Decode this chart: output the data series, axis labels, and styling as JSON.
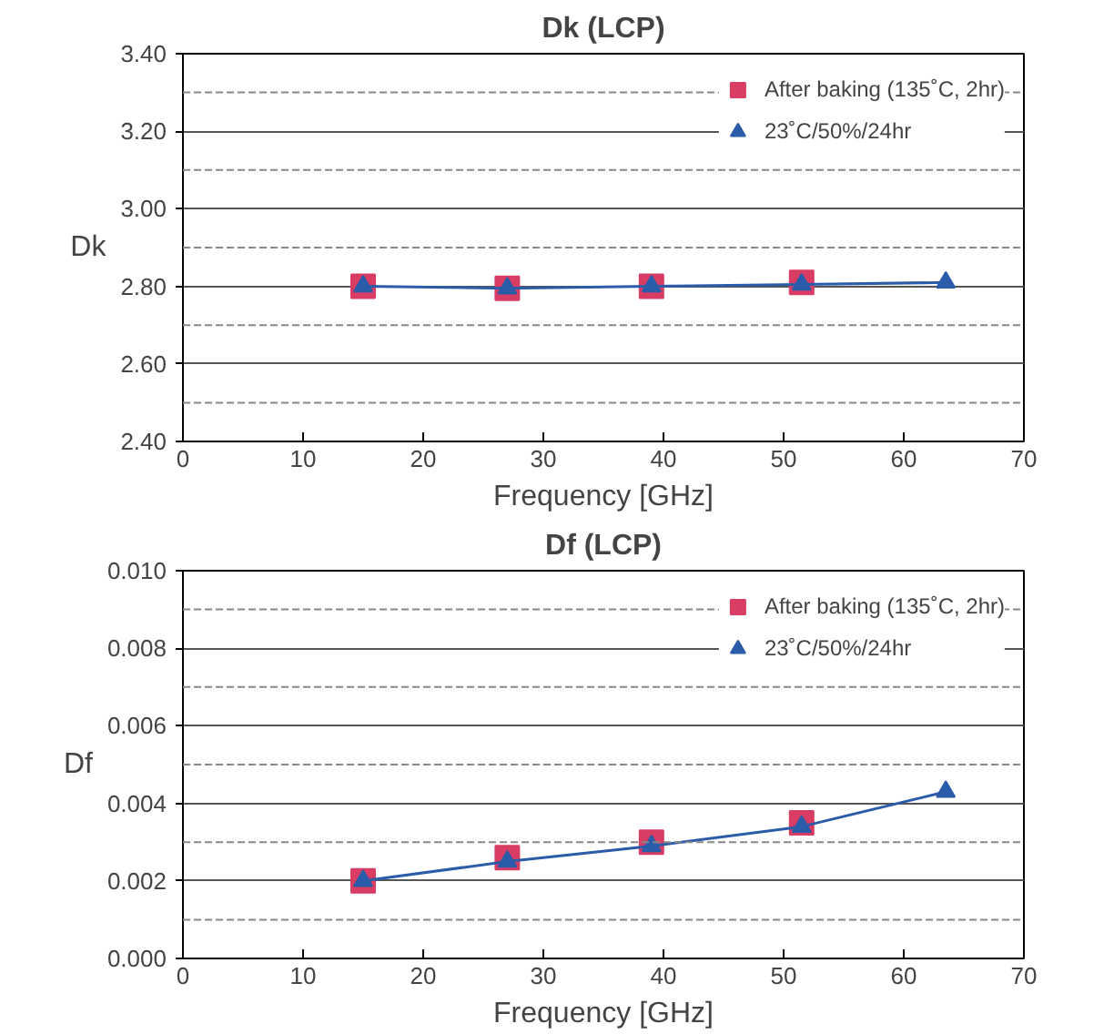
{
  "chart_data": [
    {
      "type": "line",
      "title": "Dk (LCP)",
      "xlabel": "Frequency [GHz]",
      "ylabel": "Dk",
      "xlim": [
        0,
        70
      ],
      "xticks": [
        0,
        10,
        20,
        30,
        40,
        50,
        60,
        70
      ],
      "ylim": [
        2.4,
        3.4
      ],
      "yticks": [
        {
          "value": 2.4,
          "label": "2.40"
        },
        {
          "value": 2.6,
          "label": "2.60"
        },
        {
          "value": 2.8,
          "label": "2.80"
        },
        {
          "value": 3.0,
          "label": "3.00"
        },
        {
          "value": 3.2,
          "label": "3.20"
        },
        {
          "value": 3.4,
          "label": "3.40"
        }
      ],
      "grid": "y",
      "legend": "top right",
      "series": [
        {
          "name": "After baking (135˚C, 2hr)",
          "type": "scatter",
          "marker": "square",
          "color": "#d93d63",
          "x": [
            15,
            27,
            39,
            51.5
          ],
          "values": [
            2.8,
            2.795,
            2.8,
            2.81
          ]
        },
        {
          "name": "23˚C/50%/24hr",
          "marker": "triangle",
          "color": "#2b5caa",
          "x": [
            15,
            27,
            39,
            51.5,
            63.5
          ],
          "values": [
            2.8,
            2.795,
            2.8,
            2.805,
            2.81
          ]
        }
      ]
    },
    {
      "type": "line",
      "title": "Df (LCP)",
      "xlabel": "Frequency [GHz]",
      "ylabel": "Df",
      "xlim": [
        0,
        70
      ],
      "xticks": [
        0,
        10,
        20,
        30,
        40,
        50,
        60,
        70
      ],
      "ylim": [
        0,
        0.01
      ],
      "yticks": [
        {
          "value": 0,
          "label": "0.000"
        },
        {
          "value": 0.002,
          "label": "0.002"
        },
        {
          "value": 0.004,
          "label": "0.004"
        },
        {
          "value": 0.006,
          "label": "0.006"
        },
        {
          "value": 0.008,
          "label": "0.008"
        },
        {
          "value": 0.01,
          "label": "0.010"
        }
      ],
      "grid": "y",
      "legend": "top right",
      "series": [
        {
          "name": "After baking (135˚C, 2hr)",
          "type": "scatter",
          "marker": "square",
          "color": "#d93d63",
          "x": [
            15,
            27,
            39,
            51.5
          ],
          "values": [
            0.002,
            0.0026,
            0.003,
            0.0035
          ]
        },
        {
          "name": "23˚C/50%/24hr",
          "marker": "triangle",
          "color": "#2b5caa",
          "x": [
            15,
            27,
            39,
            51.5,
            63.5
          ],
          "values": [
            0.002,
            0.0025,
            0.0029,
            0.0034,
            0.0043
          ]
        }
      ]
    }
  ]
}
